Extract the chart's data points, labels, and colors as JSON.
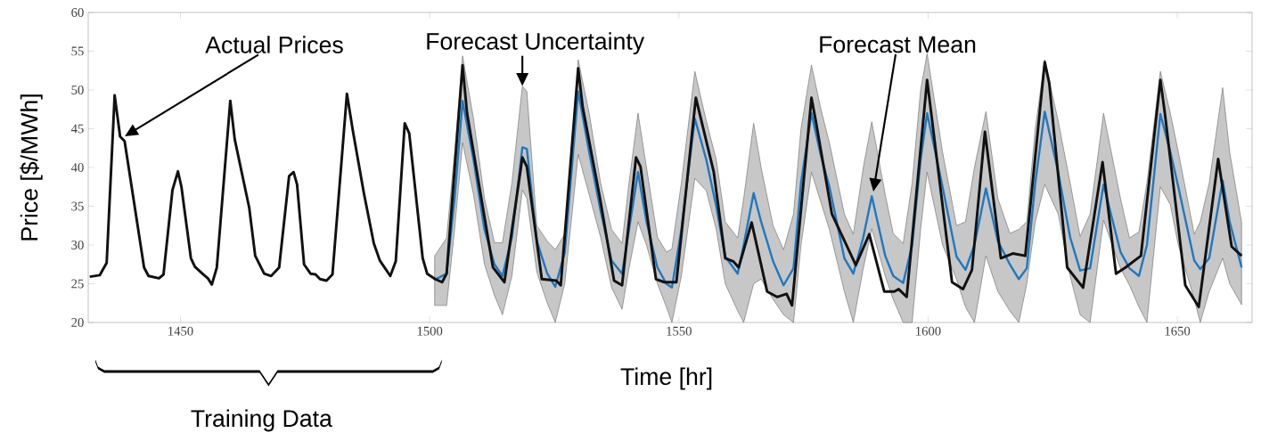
{
  "chart_data": {
    "type": "line",
    "xlabel": "Time [hr]",
    "ylabel": "Price [$/MWh]",
    "xlim": [
      1431.5,
      1665
    ],
    "ylim": [
      20,
      60
    ],
    "xticks": [
      1450,
      1500,
      1550,
      1600,
      1650
    ],
    "yticks": [
      20,
      25,
      30,
      35,
      40,
      45,
      50,
      55,
      60
    ],
    "series": [
      {
        "color": "#111111",
        "x": [
          1431.8,
          1433.8,
          1435.2,
          1436.8,
          1437.9,
          1438.8,
          1442.7,
          1443.6,
          1445.7,
          1446.6,
          1448.4,
          1449.5,
          1450.2,
          1452.1,
          1452.9,
          1454.6,
          1455.5,
          1456.3,
          1457.3,
          1460.0,
          1460.9,
          1463.8,
          1465.0,
          1466.8,
          1468.2,
          1469.8,
          1471.8,
          1472.7,
          1473.4,
          1474.8,
          1476.1,
          1477.1,
          1478.0,
          1479.3,
          1480.5,
          1483.4,
          1484.6,
          1486.8,
          1488.8,
          1490.0,
          1492.1,
          1493.2,
          1495.0,
          1495.9,
          1498.6,
          1499.5,
          1501.1,
          1502.5,
          1503.4,
          1506.6,
          1507.5,
          1512.7,
          1515.0,
          1518.6,
          1519.5,
          1522.5,
          1525.4,
          1526.3,
          1529.8,
          1530.7,
          1534.1,
          1537.0,
          1538.6,
          1541.4,
          1542.3,
          1545.4,
          1547.1,
          1549.5,
          1553.4,
          1557.0,
          1559.3,
          1560.9,
          1562.0,
          1564.6,
          1567.7,
          1569.7,
          1571.6,
          1572.7,
          1576.6,
          1577.5,
          1580.7,
          1585.5,
          1588.2,
          1591.2,
          1593.2,
          1594.1,
          1595.7,
          1599.8,
          1604.8,
          1607.0,
          1608.8,
          1611.4,
          1614.6,
          1617.0,
          1619.5,
          1623.4,
          1624.3,
          1627.9,
          1631.1,
          1635.0,
          1637.7,
          1639.6,
          1642.7,
          1646.6,
          1647.5,
          1651.6,
          1654.3,
          1658.2,
          1660.9,
          1662.9
        ],
        "values": [
          25.9,
          26.1,
          27.7,
          49.3,
          44.0,
          43.4,
          27.1,
          26.0,
          25.7,
          26.2,
          37.1,
          39.5,
          37.5,
          28.3,
          27.2,
          26.2,
          25.7,
          24.9,
          27.1,
          48.6,
          43.6,
          34.8,
          28.6,
          26.3,
          26.0,
          27.1,
          38.9,
          39.4,
          37.8,
          27.5,
          26.3,
          26.2,
          25.6,
          25.4,
          26.2,
          49.5,
          44.7,
          36.7,
          30.2,
          28.0,
          26.0,
          27.9,
          45.7,
          44.4,
          28.3,
          26.3,
          25.6,
          25.2,
          26.3,
          53.2,
          47.0,
          27.1,
          25.2,
          41.3,
          40.1,
          25.6,
          25.4,
          24.8,
          52.8,
          47.8,
          36.3,
          25.4,
          24.8,
          41.3,
          40.1,
          25.6,
          25.2,
          25.2,
          49.0,
          39.4,
          28.3,
          27.9,
          27.1,
          32.9,
          24.0,
          23.3,
          23.7,
          22.2,
          49.0,
          45.9,
          34.0,
          27.4,
          31.4,
          24.0,
          24.0,
          24.3,
          23.3,
          51.3,
          25.2,
          24.3,
          26.8,
          44.6,
          28.3,
          28.9,
          28.6,
          53.6,
          50.9,
          27.1,
          24.5,
          40.7,
          26.3,
          27.1,
          28.6,
          51.3,
          47.0,
          24.8,
          22.0,
          41.1,
          29.8,
          28.6
        ]
      },
      {
        "color": "#1f78c1",
        "x": [
          1501.0,
          1503.4,
          1505.0,
          1506.6,
          1508.8,
          1511.0,
          1513.0,
          1514.6,
          1516.5,
          1518.6,
          1519.5,
          1521.5,
          1523.6,
          1525.2,
          1527.1,
          1529.8,
          1532.0,
          1534.3,
          1536.5,
          1538.6,
          1540.0,
          1541.8,
          1543.5,
          1545.7,
          1547.5,
          1548.6,
          1550.5,
          1553.2,
          1555.5,
          1557.5,
          1559.3,
          1561.8,
          1563.0,
          1565.0,
          1566.5,
          1568.9,
          1571.0,
          1573.0,
          1574.5,
          1576.6,
          1578.5,
          1580.2,
          1583.2,
          1585.0,
          1587.0,
          1588.7,
          1591.4,
          1593.0,
          1595.0,
          1596.8,
          1598.5,
          1599.8,
          1602.9,
          1605.7,
          1607.5,
          1609.3,
          1611.6,
          1614.0,
          1616.4,
          1618.2,
          1619.8,
          1621.5,
          1623.4,
          1626.1,
          1628.5,
          1630.5,
          1632.5,
          1635.2,
          1638.6,
          1640.4,
          1642.3,
          1643.9,
          1646.6,
          1648.6,
          1650.2,
          1653.4,
          1654.6,
          1656.4,
          1659.1,
          1660.5,
          1662.9
        ],
        "values": [
          25.5,
          26.3,
          36.0,
          48.6,
          41.0,
          32.0,
          27.5,
          26.0,
          31.0,
          42.6,
          42.4,
          30.5,
          26.3,
          24.6,
          29.0,
          49.8,
          42.0,
          34.4,
          28.0,
          26.3,
          32.0,
          39.4,
          33.0,
          27.1,
          25.0,
          24.5,
          32.0,
          46.3,
          41.0,
          35.0,
          28.5,
          26.3,
          30.0,
          36.7,
          33.0,
          27.9,
          24.8,
          27.0,
          38.0,
          47.0,
          41.5,
          37.5,
          28.3,
          26.3,
          31.0,
          36.3,
          28.6,
          26.0,
          25.1,
          30.0,
          41.0,
          47.0,
          37.5,
          28.5,
          26.8,
          30.0,
          37.3,
          30.5,
          27.5,
          25.6,
          27.0,
          38.0,
          47.2,
          39.4,
          31.0,
          26.7,
          27.0,
          37.8,
          29.1,
          27.0,
          26.0,
          30.0,
          46.9,
          42.0,
          37.5,
          28.0,
          26.9,
          28.3,
          38.3,
          33.0,
          27.1
        ],
        "lower": [
          22.2,
          22.2,
          32.0,
          43.2,
          36.5,
          27.5,
          23.5,
          21.0,
          26.0,
          37.1,
          36.0,
          26.5,
          22.5,
          20.0,
          25.0,
          41.7,
          36.5,
          31.0,
          24.5,
          21.7,
          27.0,
          33.0,
          30.0,
          25.0,
          22.0,
          20.0,
          26.0,
          38.6,
          37.0,
          32.0,
          25.0,
          21.5,
          20.0,
          25.0,
          25.6,
          23.0,
          21.0,
          20.0,
          30.0,
          39.4,
          35.5,
          32.0,
          24.0,
          20.0,
          27.0,
          32.1,
          26.0,
          23.0,
          20.0,
          20.0,
          32.0,
          39.4,
          30.0,
          25.6,
          22.0,
          20.0,
          28.6,
          24.0,
          21.5,
          20.0,
          25.0,
          33.0,
          37.8,
          34.0,
          26.0,
          21.0,
          20.0,
          33.2,
          27.0,
          24.8,
          22.0,
          20.0,
          37.5,
          35.2,
          30.0,
          23.0,
          20.0,
          24.0,
          28.3,
          25.0,
          22.3
        ],
        "upper": [
          28.6,
          30.9,
          42.0,
          54.4,
          46.3,
          36.0,
          30.3,
          30.3,
          38.0,
          50.5,
          49.8,
          32.5,
          30.5,
          29.4,
          31.4,
          53.9,
          47.0,
          38.0,
          32.0,
          30.2,
          38.0,
          47.0,
          40.0,
          31.0,
          29.1,
          29.5,
          38.0,
          52.4,
          46.0,
          41.0,
          33.0,
          30.9,
          36.0,
          45.7,
          40.0,
          32.5,
          29.4,
          34.0,
          45.0,
          53.2,
          47.5,
          43.2,
          34.0,
          31.4,
          40.0,
          45.9,
          36.5,
          31.5,
          30.2,
          38.0,
          50.0,
          54.7,
          42.0,
          32.5,
          33.0,
          40.0,
          47.2,
          36.0,
          31.5,
          32.0,
          33.0,
          45.0,
          53.9,
          46.0,
          38.0,
          31.1,
          34.0,
          47.0,
          36.0,
          30.9,
          31.7,
          38.0,
          52.4,
          47.0,
          42.0,
          31.4,
          33.0,
          38.0,
          50.3,
          42.0,
          32.9
        ]
      }
    ],
    "annotations": [
      "Actual Prices",
      {
        "text": "Forecast Uncertainty",
        "x": 1518.6,
        "y": 50.5
      },
      "Forecast Mean",
      "Training Data"
    ]
  }
}
